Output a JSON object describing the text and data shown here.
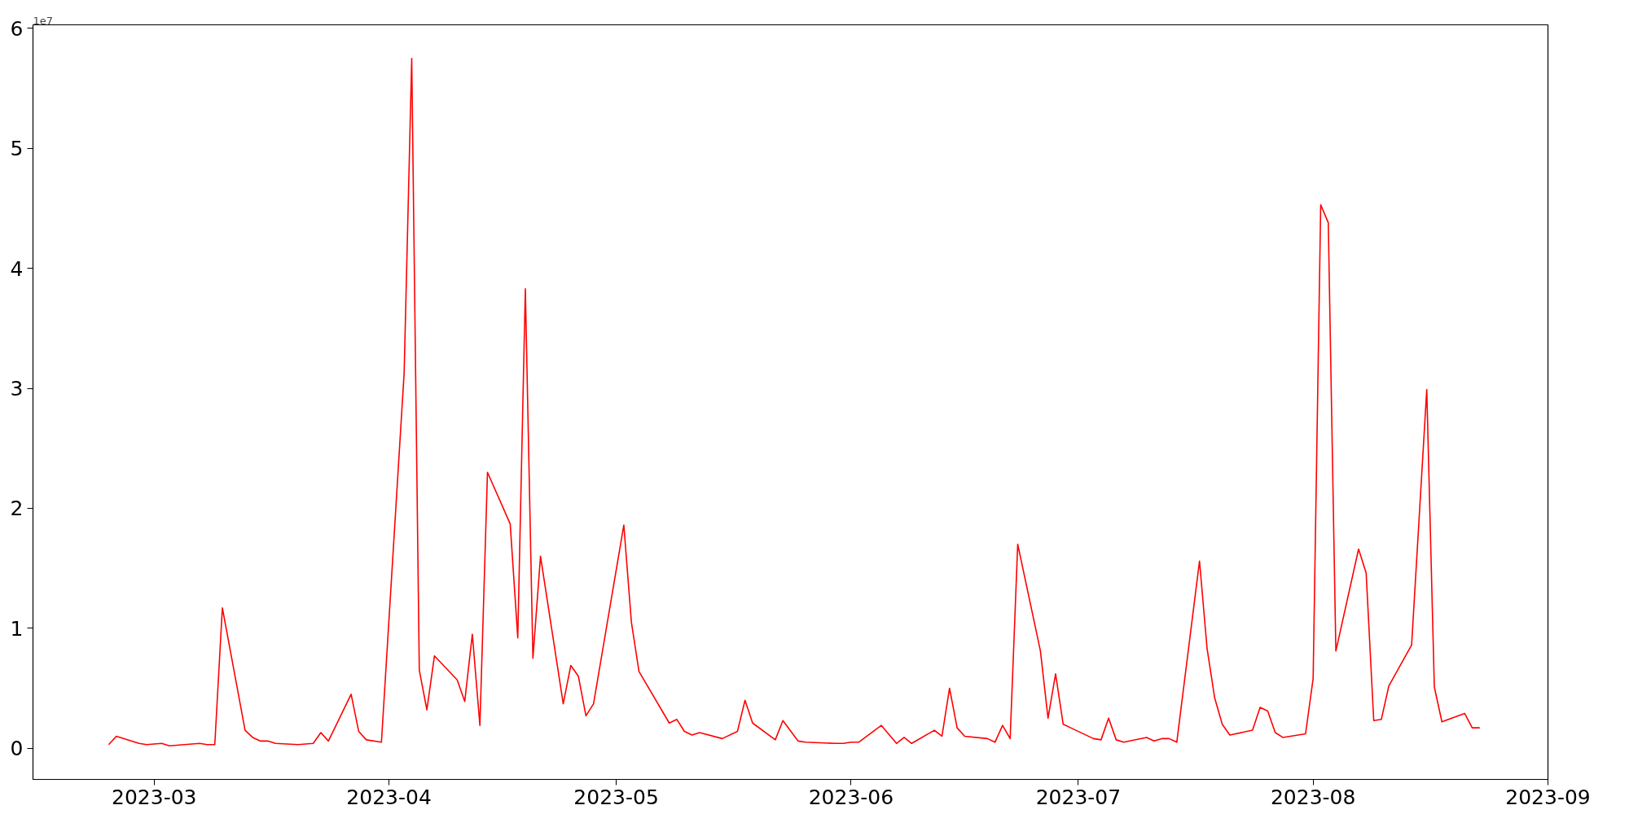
{
  "chart_data": {
    "type": "line",
    "x": [
      "2023-02-23",
      "2023-02-24",
      "2023-02-27",
      "2023-02-28",
      "2023-03-02",
      "2023-03-03",
      "2023-03-07",
      "2023-03-08",
      "2023-03-09",
      "2023-03-10",
      "2023-03-13",
      "2023-03-14",
      "2023-03-15",
      "2023-03-16",
      "2023-03-17",
      "2023-03-20",
      "2023-03-22",
      "2023-03-23",
      "2023-03-24",
      "2023-03-27",
      "2023-03-28",
      "2023-03-29",
      "2023-03-31",
      "2023-04-03",
      "2023-04-04",
      "2023-04-05",
      "2023-04-06",
      "2023-04-07",
      "2023-04-10",
      "2023-04-11",
      "2023-04-12",
      "2023-04-13",
      "2023-04-14",
      "2023-04-17",
      "2023-04-18",
      "2023-04-19",
      "2023-04-20",
      "2023-04-21",
      "2023-04-24",
      "2023-04-25",
      "2023-04-26",
      "2023-04-27",
      "2023-04-28",
      "2023-05-02",
      "2023-05-03",
      "2023-05-04",
      "2023-05-08",
      "2023-05-09",
      "2023-05-10",
      "2023-05-11",
      "2023-05-12",
      "2023-05-15",
      "2023-05-17",
      "2023-05-18",
      "2023-05-19",
      "2023-05-22",
      "2023-05-23",
      "2023-05-25",
      "2023-05-26",
      "2023-05-30",
      "2023-05-31",
      "2023-06-01",
      "2023-06-02",
      "2023-06-05",
      "2023-06-07",
      "2023-06-08",
      "2023-06-09",
      "2023-06-12",
      "2023-06-13",
      "2023-06-14",
      "2023-06-15",
      "2023-06-16",
      "2023-06-19",
      "2023-06-20",
      "2023-06-21",
      "2023-06-22",
      "2023-06-23",
      "2023-06-26",
      "2023-06-27",
      "2023-06-28",
      "2023-06-29",
      "2023-06-30",
      "2023-07-03",
      "2023-07-04",
      "2023-07-05",
      "2023-07-06",
      "2023-07-07",
      "2023-07-10",
      "2023-07-11",
      "2023-07-12",
      "2023-07-13",
      "2023-07-14",
      "2023-07-17",
      "2023-07-18",
      "2023-07-19",
      "2023-07-20",
      "2023-07-21",
      "2023-07-24",
      "2023-07-25",
      "2023-07-26",
      "2023-07-27",
      "2023-07-28",
      "2023-07-31",
      "2023-08-01",
      "2023-08-02",
      "2023-08-03",
      "2023-08-04",
      "2023-08-07",
      "2023-08-08",
      "2023-08-09",
      "2023-08-10",
      "2023-08-11",
      "2023-08-14",
      "2023-08-16",
      "2023-08-17",
      "2023-08-18",
      "2023-08-21",
      "2023-08-22",
      "2023-08-23"
    ],
    "series": [
      {
        "color": "#ff0000",
        "values": [
          0.03,
          0.1,
          0.04,
          0.03,
          0.04,
          0.02,
          0.04,
          0.03,
          0.03,
          1.17,
          0.15,
          0.09,
          0.06,
          0.06,
          0.04,
          0.03,
          0.04,
          0.13,
          0.06,
          0.45,
          0.14,
          0.07,
          0.05,
          3.13,
          5.75,
          0.65,
          0.32,
          0.77,
          0.57,
          0.39,
          0.95,
          0.19,
          2.3,
          1.87,
          0.92,
          3.83,
          0.75,
          1.6,
          0.37,
          0.69,
          0.6,
          0.27,
          0.37,
          1.86,
          1.05,
          0.64,
          0.21,
          0.24,
          0.14,
          0.11,
          0.13,
          0.08,
          0.14,
          0.4,
          0.21,
          0.07,
          0.23,
          0.06,
          0.05,
          0.04,
          0.04,
          0.05,
          0.05,
          0.19,
          0.04,
          0.09,
          0.04,
          0.15,
          0.1,
          0.5,
          0.17,
          0.1,
          0.08,
          0.05,
          0.19,
          0.08,
          1.7,
          0.81,
          0.25,
          0.62,
          0.2,
          0.17,
          0.08,
          0.07,
          0.25,
          0.07,
          0.05,
          0.09,
          0.06,
          0.08,
          0.08,
          0.05,
          1.56,
          0.83,
          0.42,
          0.2,
          0.11,
          0.15,
          0.34,
          0.31,
          0.13,
          0.09,
          0.12,
          0.58,
          4.53,
          4.38,
          0.81,
          1.66,
          1.46,
          0.23,
          0.24,
          0.52,
          0.86,
          2.99,
          0.51,
          0.22,
          0.29,
          0.17,
          0.17
        ]
      }
    ],
    "xlim": [
      "2023-02-13",
      "2023-09-01"
    ],
    "xticks": [
      {
        "value": "2023-03-01",
        "label": "2023-03"
      },
      {
        "value": "2023-04-01",
        "label": "2023-04"
      },
      {
        "value": "2023-05-01",
        "label": "2023-05"
      },
      {
        "value": "2023-06-01",
        "label": "2023-06"
      },
      {
        "value": "2023-07-01",
        "label": "2023-07"
      },
      {
        "value": "2023-08-01",
        "label": "2023-08"
      },
      {
        "value": "2023-09-01",
        "label": "2023-09"
      }
    ],
    "ylim": [
      -0.26,
      6.03
    ],
    "yticks": [
      0,
      1,
      2,
      3,
      4,
      5,
      6
    ],
    "annotations": [
      "1e7"
    ],
    "grid": false,
    "marker": "none",
    "line_style": "solid"
  }
}
